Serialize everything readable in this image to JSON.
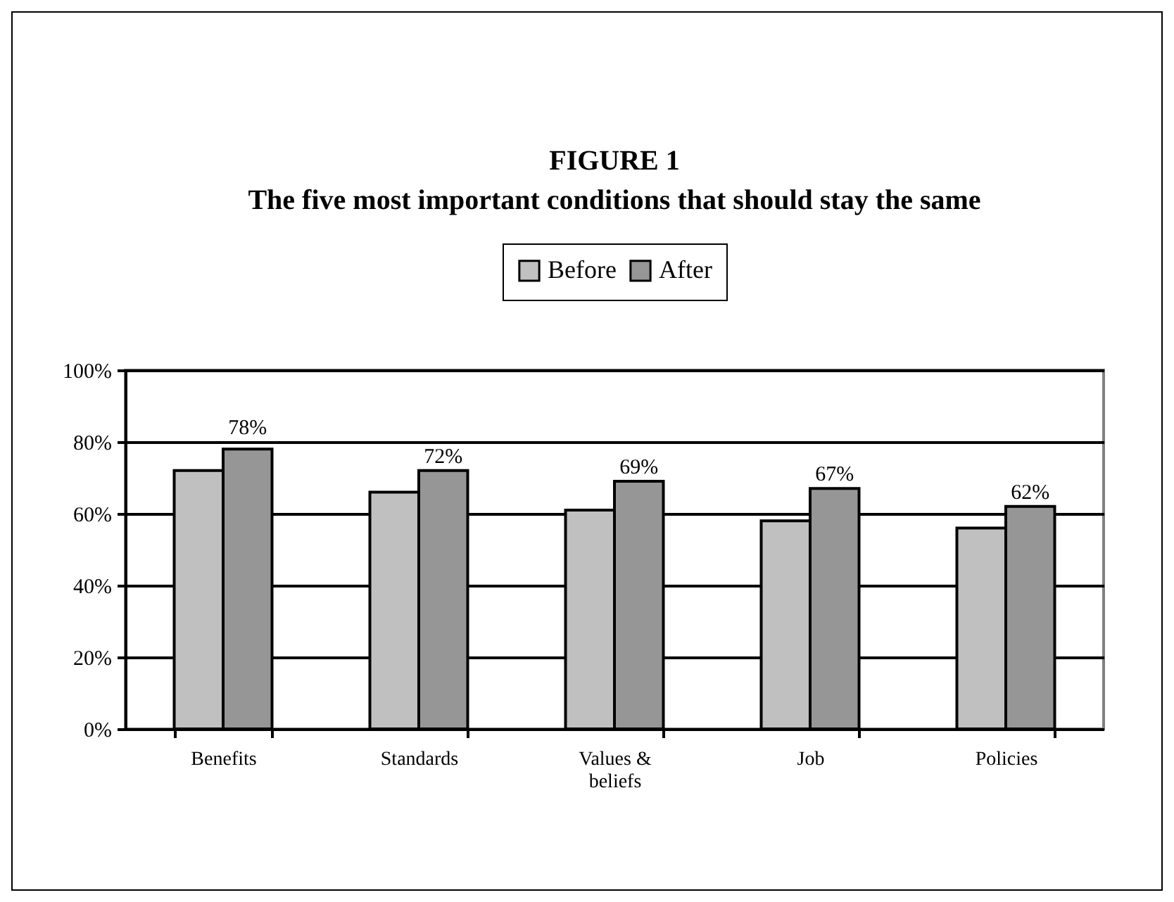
{
  "chart_data": {
    "type": "bar",
    "title": "FIGURE 1",
    "subtitle": "The five most important conditions that should stay the same",
    "categories": [
      "Benefits",
      "Standards",
      "Values & beliefs",
      "Job",
      "Policies"
    ],
    "series": [
      {
        "name": "Before",
        "color": "#c0c0c0",
        "values": [
          72,
          66,
          61,
          58,
          56
        ]
      },
      {
        "name": "After",
        "color": "#969696",
        "values": [
          78,
          72,
          69,
          67,
          62
        ],
        "value_labels": [
          "78%",
          "72%",
          "69%",
          "67%",
          "62%"
        ]
      }
    ],
    "ylim": [
      0,
      100
    ],
    "yticks": [
      {
        "value": 0,
        "label": "0%"
      },
      {
        "value": 20,
        "label": "20%"
      },
      {
        "value": 40,
        "label": "40%"
      },
      {
        "value": 60,
        "label": "60%"
      },
      {
        "value": 80,
        "label": "80%"
      },
      {
        "value": 100,
        "label": "100%"
      }
    ],
    "grid": "y",
    "legend": "top"
  }
}
